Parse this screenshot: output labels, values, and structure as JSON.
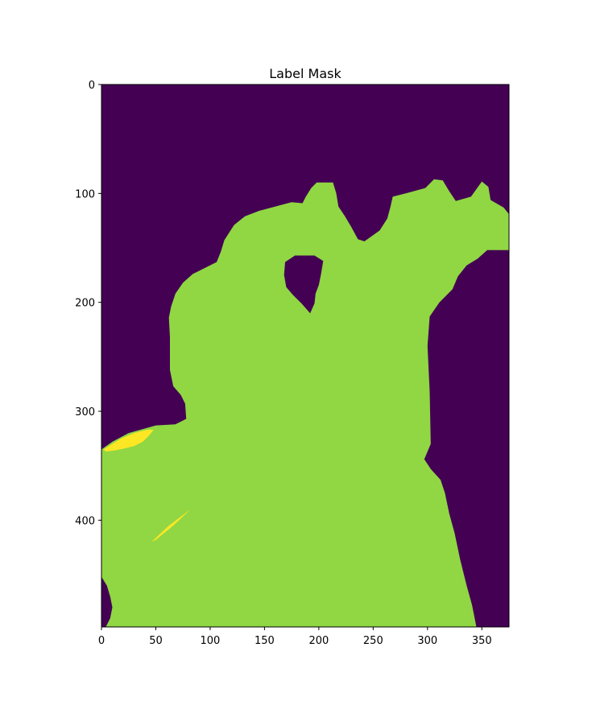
{
  "chart_data": {
    "type": "heatmap",
    "title": "Label Mask",
    "xlabel": "",
    "ylabel": "",
    "xlim": [
      0,
      375
    ],
    "ylim": [
      498,
      0
    ],
    "xticks": [
      0,
      50,
      100,
      150,
      200,
      250,
      300,
      350
    ],
    "yticks": [
      0,
      100,
      200,
      300,
      400
    ],
    "grid": false,
    "legend": "none",
    "colormap": "viridis",
    "classes": [
      {
        "label": 0,
        "color": "#440154"
      },
      {
        "label": 1,
        "color": "#90d743"
      },
      {
        "label": 2,
        "color": "#fde725"
      }
    ],
    "regions": [
      {
        "class": 1,
        "polygon": [
          [
            0,
            335
          ],
          [
            10,
            328
          ],
          [
            25,
            320
          ],
          [
            50,
            313
          ],
          [
            68,
            312
          ],
          [
            78,
            307
          ],
          [
            77,
            293
          ],
          [
            73,
            285
          ],
          [
            66,
            277
          ],
          [
            63,
            262
          ],
          [
            63,
            232
          ],
          [
            62,
            214
          ],
          [
            64,
            204
          ],
          [
            68,
            192
          ],
          [
            75,
            182
          ],
          [
            84,
            174
          ],
          [
            96,
            168
          ],
          [
            106,
            163
          ],
          [
            110,
            153
          ],
          [
            113,
            143
          ],
          [
            122,
            129
          ],
          [
            132,
            121
          ],
          [
            145,
            116
          ],
          [
            160,
            112
          ],
          [
            175,
            108
          ],
          [
            185,
            109
          ],
          [
            188,
            103
          ],
          [
            193,
            95
          ],
          [
            198,
            90
          ],
          [
            213,
            90
          ],
          [
            216,
            100
          ],
          [
            218,
            112
          ],
          [
            224,
            121
          ],
          [
            230,
            131
          ],
          [
            236,
            142
          ],
          [
            242,
            144
          ],
          [
            256,
            134
          ],
          [
            263,
            123
          ],
          [
            266,
            112
          ],
          [
            268,
            103
          ],
          [
            280,
            100
          ],
          [
            298,
            95
          ],
          [
            306,
            87
          ],
          [
            314,
            88
          ],
          [
            320,
            98
          ],
          [
            326,
            107
          ],
          [
            340,
            103
          ],
          [
            350,
            89
          ],
          [
            356,
            94
          ],
          [
            358,
            106
          ],
          [
            370,
            113
          ],
          [
            375,
            119
          ],
          [
            375,
            152
          ],
          [
            355,
            152
          ],
          [
            346,
            160
          ],
          [
            336,
            166
          ],
          [
            328,
            176
          ],
          [
            323,
            188
          ],
          [
            311,
            200
          ],
          [
            302,
            213
          ],
          [
            300,
            240
          ],
          [
            302,
            282
          ],
          [
            303,
            330
          ],
          [
            297,
            344
          ],
          [
            303,
            353
          ],
          [
            312,
            363
          ],
          [
            316,
            375
          ],
          [
            320,
            394
          ],
          [
            325,
            412
          ],
          [
            330,
            436
          ],
          [
            336,
            460
          ],
          [
            341,
            478
          ],
          [
            345,
            498
          ],
          [
            0,
            498
          ]
        ]
      },
      {
        "class": 0,
        "polygon": [
          [
            178,
            157
          ],
          [
            188,
            157
          ],
          [
            196,
            157
          ],
          [
            204,
            162
          ],
          [
            202,
            174
          ],
          [
            200,
            184
          ],
          [
            197,
            192
          ],
          [
            196,
            201
          ],
          [
            192,
            210
          ],
          [
            184,
            201
          ],
          [
            176,
            193
          ],
          [
            170,
            186
          ],
          [
            168,
            175
          ],
          [
            169,
            163
          ]
        ]
      },
      {
        "class": 0,
        "polygon": [
          [
            0,
            452
          ],
          [
            5,
            460
          ],
          [
            8,
            470
          ],
          [
            10,
            480
          ],
          [
            8,
            490
          ],
          [
            4,
            498
          ],
          [
            0,
            498
          ]
        ]
      },
      {
        "class": 2,
        "polygon": [
          [
            2,
            335
          ],
          [
            10,
            330
          ],
          [
            18,
            325
          ],
          [
            30,
            320
          ],
          [
            42,
            317
          ],
          [
            48,
            317
          ],
          [
            44,
            322
          ],
          [
            38,
            328
          ],
          [
            30,
            332
          ],
          [
            22,
            334
          ],
          [
            12,
            336
          ],
          [
            4,
            337
          ]
        ]
      },
      {
        "class": 2,
        "polygon": [
          [
            46,
            420
          ],
          [
            62,
            405
          ],
          [
            78,
            393
          ],
          [
            82,
            390
          ],
          [
            66,
            405
          ],
          [
            50,
            418
          ]
        ]
      }
    ]
  }
}
